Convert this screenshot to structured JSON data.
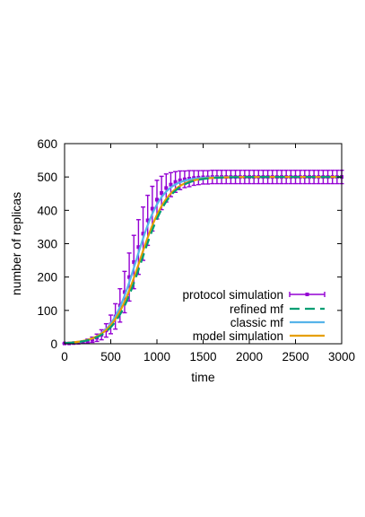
{
  "chart_data": {
    "type": "line",
    "title": "",
    "xlabel": "time",
    "ylabel": "number of replicas",
    "xlim": [
      0,
      3000
    ],
    "ylim": [
      0,
      600
    ],
    "xticks": [
      "0",
      "500",
      "1000",
      "1500",
      "2000",
      "2500",
      "3000"
    ],
    "yticks": [
      "0",
      "100",
      "200",
      "300",
      "400",
      "500",
      "600"
    ],
    "grid": false,
    "legend_position": "bottom-right",
    "series": [
      {
        "name": "protocol simulation",
        "color": "#9400d3",
        "style": "points-errorbars",
        "x": [
          0,
          50,
          100,
          150,
          200,
          250,
          300,
          350,
          400,
          450,
          500,
          550,
          600,
          650,
          700,
          750,
          800,
          850,
          900,
          950,
          1000,
          1050,
          1100,
          1150,
          1200,
          1250,
          1300,
          1350,
          1400,
          1450,
          1500,
          1550,
          1600,
          1650,
          1700,
          1750,
          1800,
          1850,
          1900,
          1950,
          2000,
          2050,
          2100,
          2150,
          2200,
          2250,
          2300,
          2350,
          2400,
          2450,
          2500,
          2550,
          2600,
          2650,
          2700,
          2750,
          2800,
          2850,
          2900,
          2950,
          3000
        ],
        "y": [
          1,
          1,
          2,
          3,
          5,
          8,
          12,
          18,
          27,
          40,
          58,
          82,
          115,
          155,
          200,
          245,
          290,
          330,
          370,
          405,
          432,
          452,
          467,
          477,
          485,
          490,
          493,
          495,
          497,
          498,
          499,
          499,
          500,
          500,
          500,
          500,
          500,
          500,
          500,
          500,
          500,
          500,
          500,
          500,
          500,
          500,
          500,
          500,
          500,
          500,
          500,
          500,
          500,
          500,
          500,
          500,
          500,
          500,
          500,
          500,
          500
        ],
        "error": [
          1,
          1,
          2,
          3,
          4,
          6,
          8,
          11,
          15,
          20,
          28,
          38,
          50,
          62,
          72,
          80,
          82,
          80,
          75,
          67,
          58,
          50,
          42,
          36,
          31,
          28,
          25,
          24,
          22,
          21,
          20,
          20,
          20,
          20,
          20,
          20,
          20,
          20,
          20,
          20,
          20,
          20,
          20,
          20,
          20,
          20,
          20,
          20,
          20,
          20,
          20,
          20,
          20,
          20,
          20,
          20,
          20,
          20,
          20,
          20,
          20
        ]
      },
      {
        "name": "refined mf",
        "color": "#009e73",
        "style": "dashed",
        "k": 0.0066,
        "t0": 835
      },
      {
        "name": "classic mf",
        "color": "#56b4e9",
        "style": "solid",
        "k": 0.0072,
        "t0": 775
      },
      {
        "name": "model simulation",
        "color": "#e69f00",
        "style": "solid",
        "k": 0.0066,
        "t0": 815
      }
    ],
    "carrying_capacity": 500
  }
}
